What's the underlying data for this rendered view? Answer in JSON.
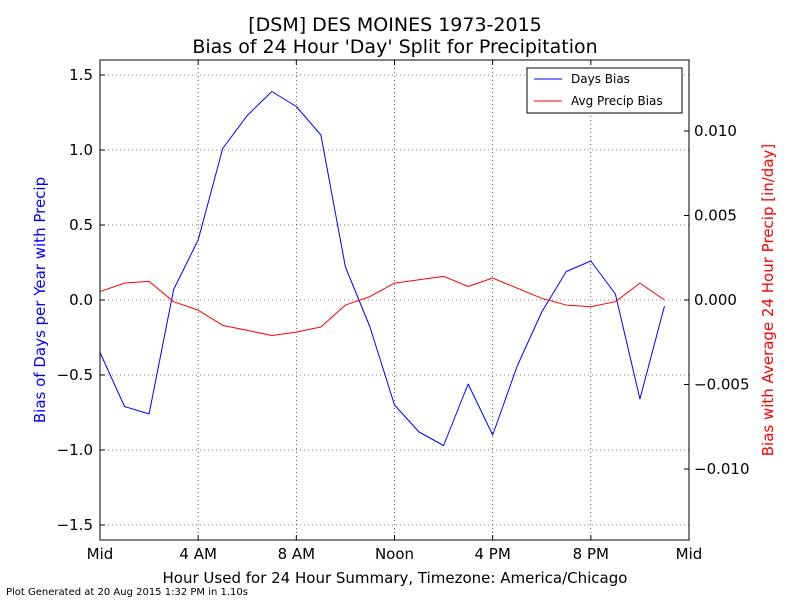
{
  "chart_data": {
    "type": "line",
    "title": "[DSM] DES MOINES 1973-2015",
    "subtitle": "Bias of 24 Hour 'Day' Split for Precipitation",
    "xlabel": "Hour Used for 24 Hour Summary, Timezone: America/Chicago",
    "ylabel_left": "Bias of Days per Year with Precip",
    "ylabel_right": "Bias with Average 24 Hour Precip [in/day]",
    "xlim": [
      0,
      24
    ],
    "ylim_left": [
      -1.6,
      1.6
    ],
    "ylim_right": [
      -0.0142,
      0.0142
    ],
    "x_ticks": [
      {
        "value": 0,
        "label": "Mid"
      },
      {
        "value": 4,
        "label": "4 AM"
      },
      {
        "value": 8,
        "label": "8 AM"
      },
      {
        "value": 12,
        "label": "Noon"
      },
      {
        "value": 16,
        "label": "4 PM"
      },
      {
        "value": 20,
        "label": "8 PM"
      },
      {
        "value": 24,
        "label": "Mid"
      }
    ],
    "y_ticks_left": [
      {
        "value": 1.5,
        "label": "1.5"
      },
      {
        "value": 1.0,
        "label": "1.0"
      },
      {
        "value": 0.5,
        "label": "0.5"
      },
      {
        "value": 0.0,
        "label": "0.0"
      },
      {
        "value": -0.5,
        "label": "−0.5"
      },
      {
        "value": -1.0,
        "label": "−1.0"
      },
      {
        "value": -1.5,
        "label": "−1.5"
      }
    ],
    "y_ticks_right": [
      {
        "value": 0.01,
        "label": "0.010"
      },
      {
        "value": 0.005,
        "label": "0.005"
      },
      {
        "value": 0.0,
        "label": "0.000"
      },
      {
        "value": -0.005,
        "label": "−0.005"
      },
      {
        "value": -0.01,
        "label": "−0.010"
      }
    ],
    "x": [
      0,
      1,
      2,
      3,
      4,
      5,
      6,
      7,
      8,
      9,
      10,
      11,
      12,
      13,
      14,
      15,
      16,
      17,
      18,
      19,
      20,
      21,
      22,
      23
    ],
    "series": [
      {
        "name": "Days Bias",
        "axis": "left",
        "color": "#0000ff",
        "values": [
          -0.35,
          -0.71,
          -0.76,
          0.07,
          0.4,
          1.01,
          1.23,
          1.39,
          1.29,
          1.1,
          0.22,
          -0.18,
          -0.7,
          -0.88,
          -0.97,
          -0.56,
          -0.9,
          -0.44,
          -0.08,
          0.19,
          0.26,
          0.04,
          -0.66,
          -0.04
        ]
      },
      {
        "name": "Avg Precip Bias",
        "axis": "right",
        "color": "#ff0000",
        "values": [
          0.0005,
          0.001,
          0.0011,
          -0.0001,
          -0.0006,
          -0.0015,
          -0.0018,
          -0.0021,
          -0.0019,
          -0.0016,
          -0.0003,
          0.0002,
          0.001,
          0.0012,
          0.0014,
          0.0008,
          0.0013,
          0.0007,
          0.0001,
          -0.0003,
          -0.0004,
          -0.0001,
          0.001,
          0.0
        ]
      }
    ],
    "grid": true,
    "legend_position": "top-right"
  },
  "footer": "Plot Generated at 20 Aug 2015 1:32 PM in 1.10s"
}
